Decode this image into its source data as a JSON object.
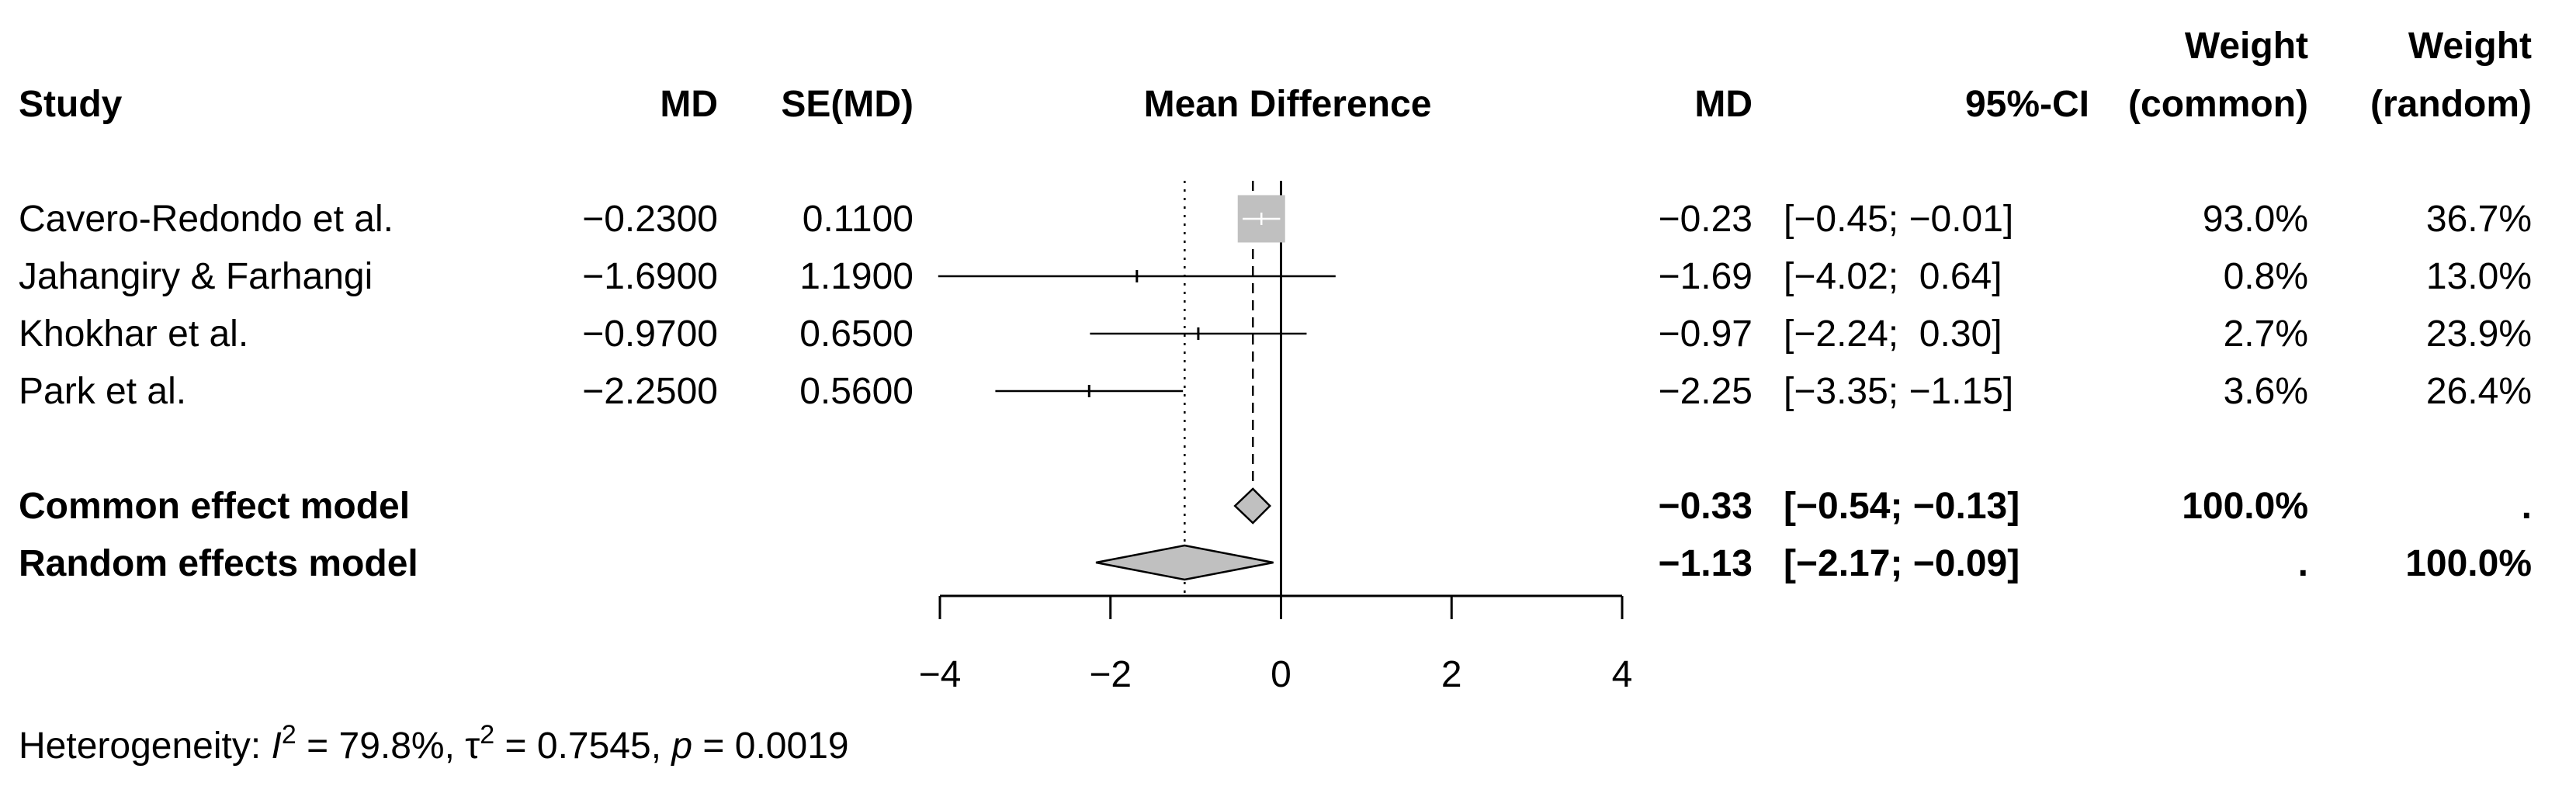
{
  "chart_data": {
    "type": "forest",
    "columns": {
      "study": "Study",
      "md": "MD",
      "se_md": "SE(MD)",
      "plot_title": "Mean Difference",
      "md_out": "MD",
      "ci": "95%-CI",
      "weight_common_1": "Weight",
      "weight_common_2": "(common)",
      "weight_random_1": "Weight",
      "weight_random_2": "(random)"
    },
    "studies": [
      {
        "name": "Cavero-Redondo et al.",
        "md": "−0.2300",
        "se": "0.1100",
        "md_out": "−0.23",
        "ci_text": "[−0.45; −0.01]",
        "w_common": "93.0%",
        "w_random": "36.7%",
        "est": -0.23,
        "lower": -0.45,
        "upper": -0.01,
        "weight": 0.93
      },
      {
        "name": "Jahangiry & Farhangi",
        "md": "−1.6900",
        "se": "1.1900",
        "md_out": "−1.69",
        "ci_text": "[−4.02;  0.64]",
        "w_common": "0.8%",
        "w_random": "13.0%",
        "est": -1.69,
        "lower": -4.02,
        "upper": 0.64,
        "weight": 0.008
      },
      {
        "name": "Khokhar et al.",
        "md": "−0.9700",
        "se": "0.6500",
        "md_out": "−0.97",
        "ci_text": "[−2.24;  0.30]",
        "w_common": "2.7%",
        "w_random": "23.9%",
        "est": -0.97,
        "lower": -2.24,
        "upper": 0.3,
        "weight": 0.027
      },
      {
        "name": "Park et al.",
        "md": "−2.2500",
        "se": "0.5600",
        "md_out": "−2.25",
        "ci_text": "[−3.35; −1.15]",
        "w_common": "3.6%",
        "w_random": "26.4%",
        "est": -2.25,
        "lower": -3.35,
        "upper": -1.15,
        "weight": 0.036
      }
    ],
    "common": {
      "label": "Common effect model",
      "md_out": "−0.33",
      "ci_text": "[−0.54; −0.13]",
      "w_common": "100.0%",
      "w_random": ".",
      "est": -0.33,
      "lower": -0.54,
      "upper": -0.13
    },
    "random": {
      "label": "Random effects model",
      "md_out": "−1.13",
      "ci_text": "[−2.17; −0.09]",
      "w_common": ".",
      "w_random": "100.0%",
      "est": -1.13,
      "lower": -2.17,
      "upper": -0.09
    },
    "xlim": [
      -4,
      4
    ],
    "xticks": [
      -4,
      -2,
      0,
      2,
      4
    ],
    "xtick_labels": [
      "−4",
      "−2",
      "0",
      "2",
      "4"
    ],
    "heterogeneity": {
      "prefix": "Heterogeneity: ",
      "i_sym": "I",
      "i_sup": "2",
      "i_val": " = 79.8%, ",
      "tau_sym": "τ",
      "tau_sup": "2",
      "tau_val": " = 0.7545, ",
      "p_sym": "p",
      "p_val": " = 0.0019"
    }
  },
  "colors": {
    "ink": "#000000",
    "box_fill": "#c0c0c0",
    "box_stroke": "#c0c0c0",
    "diamond_fill": "#c0c0c0",
    "ci_inside_box": "#ffffff"
  }
}
